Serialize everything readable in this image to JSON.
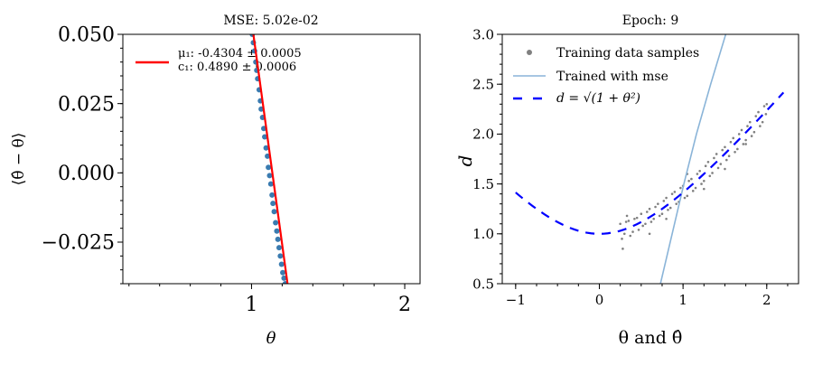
{
  "chart_data": [
    {
      "type": "scatter",
      "title": "MSE: 5.02e-02",
      "xlabel": "θ",
      "ylabel": "⟨θ̂ − θ⟩",
      "xlim": [
        0.16,
        2.1
      ],
      "ylim": [
        -0.04,
        0.05
      ],
      "xticks": [
        1,
        2
      ],
      "xtick_labels": [
        "1",
        "2"
      ],
      "yticks": [
        0.05,
        0.025,
        0.0,
        -0.025
      ],
      "ytick_labels": [
        "0.050",
        "0.025",
        "0.000",
        "−0.025"
      ],
      "grid": false,
      "legend": {
        "placement": "top-left",
        "entries": [
          "μ₁: -0.4304 ± 0.0005",
          "c₁: 0.4890 ± 0.0006"
        ]
      },
      "colors": {
        "points": "#3a7bb0",
        "fit": "#ff0000"
      },
      "points": {
        "x": [
          1.005,
          1.012,
          1.02,
          1.028,
          1.034,
          1.04,
          1.05,
          1.058,
          1.063,
          1.072,
          1.08,
          1.086,
          1.095,
          1.104,
          1.11,
          1.118,
          1.126,
          1.134,
          1.14,
          1.148,
          1.157,
          1.165,
          1.172,
          1.18,
          1.188,
          1.196,
          1.204,
          1.212,
          1.22
        ],
        "y": [
          0.05,
          0.047,
          0.044,
          0.04,
          0.037,
          0.034,
          0.03,
          0.026,
          0.023,
          0.02,
          0.016,
          0.013,
          0.009,
          0.006,
          0.002,
          -0.001,
          -0.004,
          -0.008,
          -0.011,
          -0.014,
          -0.018,
          -0.021,
          -0.024,
          -0.027,
          -0.03,
          -0.033,
          -0.036,
          -0.038,
          -0.04
        ]
      },
      "fit_line": {
        "x": [
          1.012,
          1.235
        ],
        "y": [
          0.05,
          -0.04
        ]
      }
    },
    {
      "type": "scatter",
      "title": "Epoch: 9",
      "xlabel": "θ and θ̂",
      "ylabel": "d",
      "xlim": [
        -1.16,
        2.38
      ],
      "ylim": [
        0.5,
        3.0
      ],
      "xticks": [
        -1,
        0,
        1,
        2
      ],
      "xtick_labels": [
        "−1",
        "0",
        "1",
        "2"
      ],
      "yticks": [
        0.5,
        1.0,
        1.5,
        2.0,
        2.5,
        3.0
      ],
      "ytick_labels": [
        "0.5",
        "1.0",
        "1.5",
        "2.0",
        "2.5",
        "3.0"
      ],
      "grid": false,
      "legend": {
        "placement": "top-left",
        "entries": [
          "Training data samples",
          "Trained with mse",
          "d = √(1 + θ²)"
        ]
      },
      "colors": {
        "samples": "#808080",
        "mse": "#8ab4d8",
        "true": "#0000ff"
      },
      "series": [
        {
          "name": "Training data samples",
          "x": [
            0.25,
            0.27,
            0.3,
            0.32,
            0.35,
            0.37,
            0.4,
            0.42,
            0.45,
            0.47,
            0.5,
            0.52,
            0.55,
            0.57,
            0.6,
            0.62,
            0.65,
            0.67,
            0.7,
            0.72,
            0.75,
            0.77,
            0.8,
            0.82,
            0.85,
            0.87,
            0.9,
            0.92,
            0.95,
            0.97,
            1.0,
            1.02,
            1.05,
            1.07,
            1.1,
            1.12,
            1.15,
            1.17,
            1.2,
            1.22,
            1.25,
            1.27,
            1.3,
            1.32,
            1.35,
            1.37,
            1.4,
            1.42,
            1.45,
            1.47,
            1.5,
            1.52,
            1.55,
            1.57,
            1.6,
            1.62,
            1.65,
            1.67,
            1.7,
            1.72,
            1.75,
            1.77,
            1.8,
            1.82,
            1.85,
            1.87,
            1.9,
            1.92,
            1.95,
            1.97,
            2.0,
            1.99,
            0.28,
            0.6,
            1.05,
            1.5,
            0.33,
            0.8,
            1.25,
            1.75
          ],
          "y": [
            1.1,
            0.95,
            1.0,
            1.12,
            1.13,
            0.98,
            1.02,
            1.15,
            1.16,
            1.04,
            1.2,
            1.08,
            1.1,
            1.22,
            1.25,
            1.12,
            1.15,
            1.27,
            1.3,
            1.18,
            1.2,
            1.33,
            1.36,
            1.24,
            1.26,
            1.4,
            1.42,
            1.3,
            1.32,
            1.46,
            1.48,
            1.36,
            1.38,
            1.53,
            1.55,
            1.43,
            1.46,
            1.6,
            1.63,
            1.5,
            1.53,
            1.68,
            1.72,
            1.58,
            1.61,
            1.76,
            1.8,
            1.66,
            1.7,
            1.84,
            1.87,
            1.74,
            1.78,
            1.92,
            1.96,
            1.82,
            1.85,
            2.0,
            2.04,
            1.9,
            1.94,
            2.08,
            2.12,
            1.98,
            2.02,
            2.18,
            2.22,
            2.08,
            2.12,
            2.28,
            2.3,
            2.2,
            0.85,
            1.0,
            1.6,
            1.65,
            1.18,
            1.15,
            1.45,
            1.9
          ]
        },
        {
          "name": "Trained with mse",
          "x": [
            0.73,
            0.87,
            1.01,
            1.16,
            1.33,
            1.51
          ],
          "y": [
            0.5,
            1.0,
            1.5,
            2.0,
            2.5,
            3.0
          ]
        },
        {
          "name": "d = √(1 + θ²)",
          "x_range": [
            -1.0,
            2.2
          ]
        }
      ]
    }
  ]
}
